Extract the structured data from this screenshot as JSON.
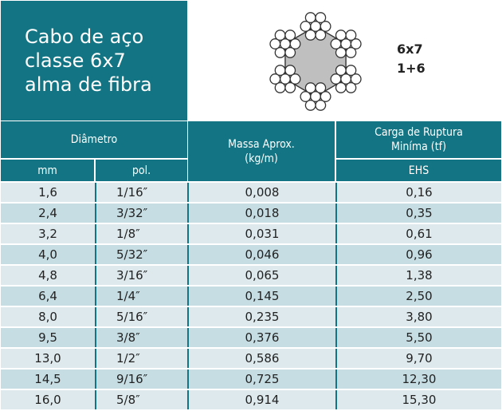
{
  "title": "Cabo de aço\nclasse 6x7\nalma de fibra",
  "construction": {
    "line1": "6x7",
    "line2": "1+6"
  },
  "headers": {
    "diametro": "Diâmetro",
    "massa": "Massa Aprox.\n(kg/m)",
    "carga": "Carga de Ruptura\nMiníma (tf)",
    "mm": "mm",
    "pol": "pol.",
    "ehs": "EHS"
  },
  "rows": [
    {
      "mm": "1,6",
      "pol": "1/16″",
      "massa": "0,008",
      "carga": "0,16"
    },
    {
      "mm": "2,4",
      "pol": "3/32″",
      "massa": "0,018",
      "carga": "0,35"
    },
    {
      "mm": "3,2",
      "pol": "1/8″",
      "massa": "0,031",
      "carga": "0,61"
    },
    {
      "mm": "4,0",
      "pol": "5/32″",
      "massa": "0,046",
      "carga": "0,96"
    },
    {
      "mm": "4,8",
      "pol": "3/16″",
      "massa": "0,065",
      "carga": "1,38"
    },
    {
      "mm": "6,4",
      "pol": "1/4″",
      "massa": "0,145",
      "carga": "2,50"
    },
    {
      "mm": "8,0",
      "pol": "5/16″",
      "massa": "0,235",
      "carga": "3,80"
    },
    {
      "mm": "9,5",
      "pol": "3/8″",
      "massa": "0,376",
      "carga": "5,50"
    },
    {
      "mm": "13,0",
      "pol": "1/2″",
      "massa": "0,586",
      "carga": "9,70"
    },
    {
      "mm": "14,5",
      "pol": "9/16″",
      "massa": "0,725",
      "carga": "12,30"
    },
    {
      "mm": "16,0",
      "pol": "5/8″",
      "massa": "0,914",
      "carga": "15,30"
    }
  ],
  "colors": {
    "teal": "#137583",
    "row_light": "#dde9ed",
    "row_dark": "#c6dde3",
    "core": "#bfbfbf"
  }
}
